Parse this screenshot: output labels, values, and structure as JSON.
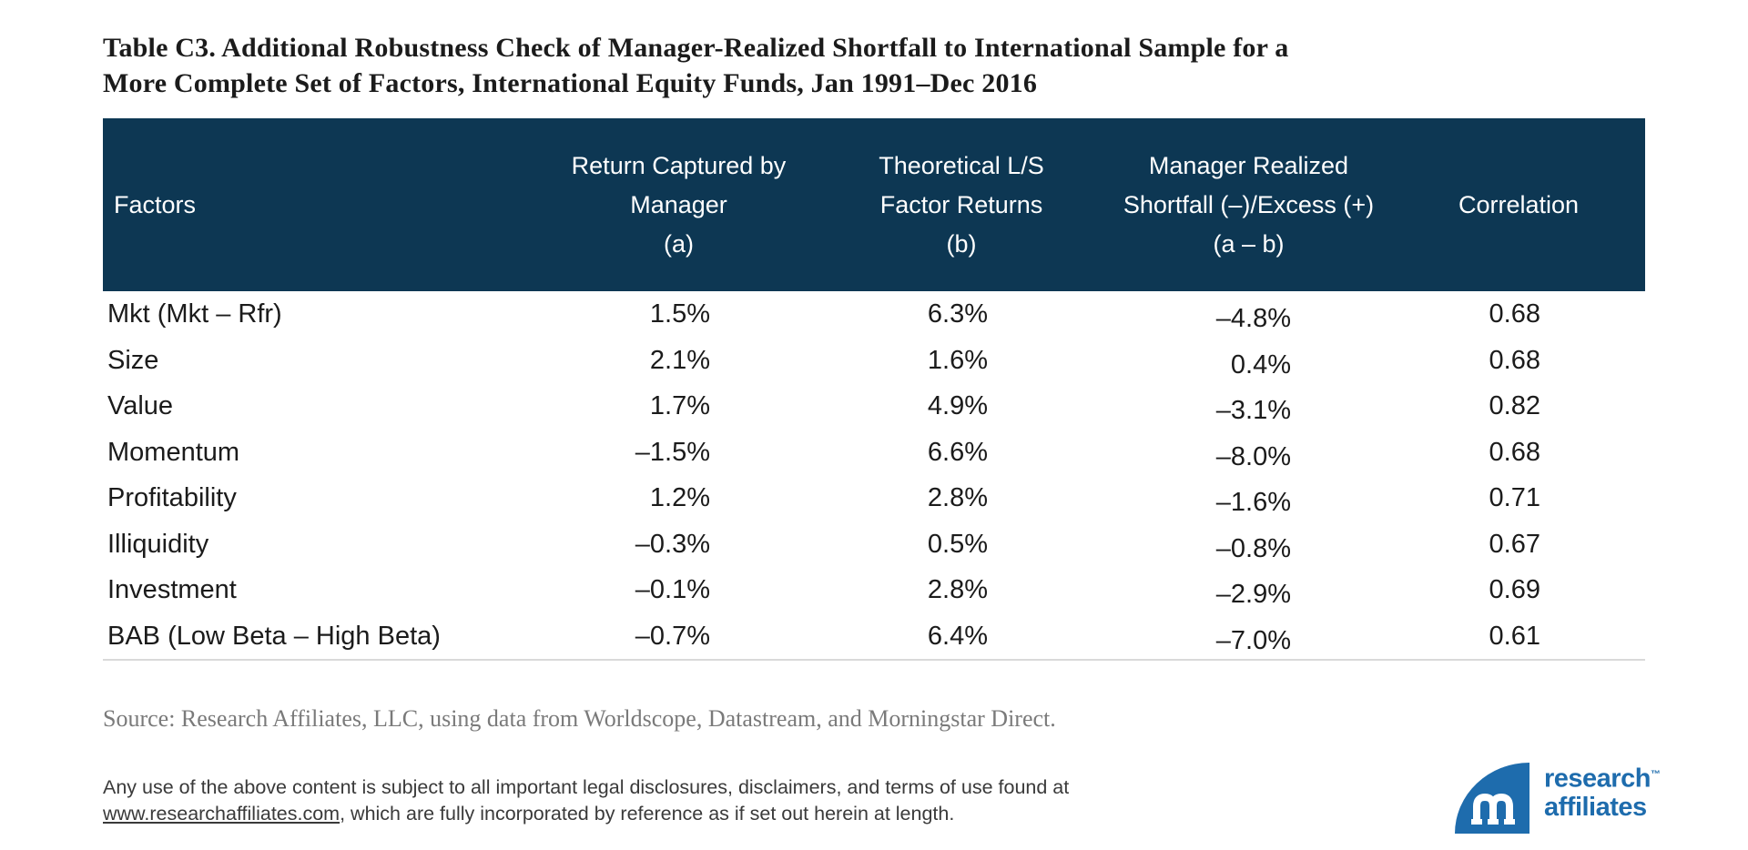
{
  "title": "Table C3. Additional Robustness Check of Manager-Realized Shortfall to International Sample for a\nMore Complete Set of Factors, International Equity Funds, Jan 1991–Dec 2016",
  "table": {
    "headers": {
      "factors": "Factors",
      "return_captured": "Return Captured by\nManager\n(a)",
      "theoretical": "Theoretical L/S\nFactor Returns\n(b)",
      "shortfall": "Manager Realized\nShortfall (–)/Excess (+)\n(a – b)",
      "correlation": "Correlation"
    },
    "rows": [
      [
        "Mkt (Mkt – Rfr)",
        "1.5%",
        "6.3%",
        "–4.8%",
        "0.68"
      ],
      [
        "Size",
        "2.1%",
        "1.6%",
        "0.4%",
        "0.68"
      ],
      [
        "Value",
        "1.7%",
        "4.9%",
        "–3.1%",
        "0.82"
      ],
      [
        "Momentum",
        "–1.5%",
        "6.6%",
        "–8.0%",
        "0.68"
      ],
      [
        "Profitability",
        "1.2%",
        "2.8%",
        "–1.6%",
        "0.71"
      ],
      [
        "Illiquidity",
        "–0.3%",
        "0.5%",
        "–0.8%",
        "0.67"
      ],
      [
        "Investment",
        "–0.1%",
        "2.8%",
        "–2.9%",
        "0.69"
      ],
      [
        "BAB (Low Beta – High Beta)",
        "–0.7%",
        "6.4%",
        "–7.0%",
        "0.61"
      ]
    ]
  },
  "chart_data": {
    "type": "table",
    "title": "Table C3. Additional Robustness Check of Manager-Realized Shortfall to International Sample for a More Complete Set of Factors, International Equity Funds, Jan 1991–Dec 2016",
    "columns": [
      "Factors",
      "Return Captured by Manager (a)",
      "Theoretical L/S Factor Returns (b)",
      "Manager Realized Shortfall (–)/Excess (+) (a – b)",
      "Correlation"
    ],
    "rows": [
      {
        "factor": "Mkt (Mkt – Rfr)",
        "return_captured_pct": 1.5,
        "theoretical_ls_pct": 6.3,
        "shortfall_pct": -4.8,
        "correlation": 0.68
      },
      {
        "factor": "Size",
        "return_captured_pct": 2.1,
        "theoretical_ls_pct": 1.6,
        "shortfall_pct": 0.4,
        "correlation": 0.68
      },
      {
        "factor": "Value",
        "return_captured_pct": 1.7,
        "theoretical_ls_pct": 4.9,
        "shortfall_pct": -3.1,
        "correlation": 0.82
      },
      {
        "factor": "Momentum",
        "return_captured_pct": -1.5,
        "theoretical_ls_pct": 6.6,
        "shortfall_pct": -8.0,
        "correlation": 0.68
      },
      {
        "factor": "Profitability",
        "return_captured_pct": 1.2,
        "theoretical_ls_pct": 2.8,
        "shortfall_pct": -1.6,
        "correlation": 0.71
      },
      {
        "factor": "Illiquidity",
        "return_captured_pct": -0.3,
        "theoretical_ls_pct": 0.5,
        "shortfall_pct": -0.8,
        "correlation": 0.67
      },
      {
        "factor": "Investment",
        "return_captured_pct": -0.1,
        "theoretical_ls_pct": 2.8,
        "shortfall_pct": -2.9,
        "correlation": 0.69
      },
      {
        "factor": "BAB (Low Beta – High Beta)",
        "return_captured_pct": -0.7,
        "theoretical_ls_pct": 6.4,
        "shortfall_pct": -7.0,
        "correlation": 0.61
      }
    ]
  },
  "source": "Source: Research Affiliates, LLC, using data from Worldscope, Datastream, and Morningstar Direct.",
  "legal": {
    "line1": "Any use of the above content is subject to all important legal disclosures, disclaimers, and terms of use found at",
    "link": "www.researchaffiliates.com",
    "line2_after_link": ", which are fully incorporated by reference as if set out herein at length."
  },
  "logo": {
    "wordmark_line1": "research",
    "wordmark_line2": "affiliates",
    "tm": "™"
  },
  "colors": {
    "header_bg": "#0d3753",
    "body_text": "#1b1b1b",
    "source_text": "#7a7a7a",
    "legal_text": "#3a3a3a",
    "logo_blue": "#1e6cad",
    "rule": "#d9d9d9"
  }
}
